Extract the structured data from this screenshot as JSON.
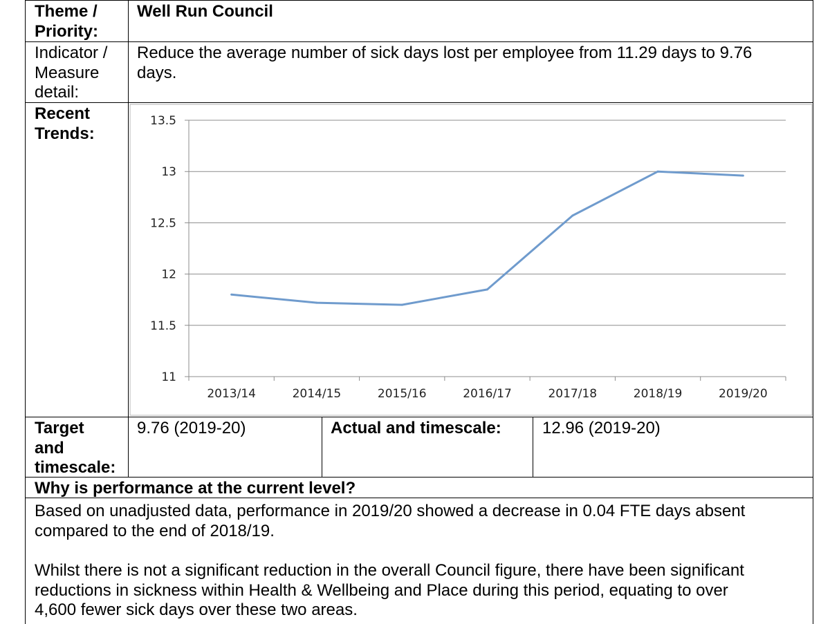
{
  "table": {
    "theme_label": "Theme /\nPriority:",
    "theme_value": "Well Run Council",
    "indicator_label": "Indicator /\nMeasure\ndetail:",
    "indicator_value": "Reduce the average number of sick days lost per employee from 11.29 days to 9.76\ndays.",
    "trends_label": "Recent\nTrends:",
    "target_label": "Target\nand\ntimescale:",
    "target_value": "9.76 (2019-20)",
    "actual_label": "Actual and timescale:",
    "actual_value": "12.96 (2019-20)",
    "why_heading": "Why is performance at the current level?",
    "why_paragraph_1": "Based on unadjusted data, performance in 2019/20 showed a decrease in 0.04 FTE days absent\ncompared to the end of 2018/19.",
    "why_paragraph_2": "Whilst there is not a significant reduction in the overall Council figure, there have been significant\nreductions in sickness within Health & Wellbeing and Place during this period, equating to over\n4,600 fewer sick days over these two areas."
  },
  "chart_data": {
    "type": "line",
    "categories": [
      "2013/14",
      "2014/15",
      "2015/16",
      "2016/17",
      "2017/18",
      "2018/19",
      "2019/20"
    ],
    "series": [
      {
        "values": [
          11.8,
          11.72,
          11.7,
          11.85,
          12.57,
          13.0,
          12.96
        ]
      }
    ],
    "yticks": [
      "11",
      "11.5",
      "12",
      "12.5",
      "13",
      "13.5"
    ],
    "ylim": [
      11,
      13.5
    ],
    "grid": true,
    "line_color": "#6f9bcd",
    "grid_color": "#8c8c8c"
  }
}
